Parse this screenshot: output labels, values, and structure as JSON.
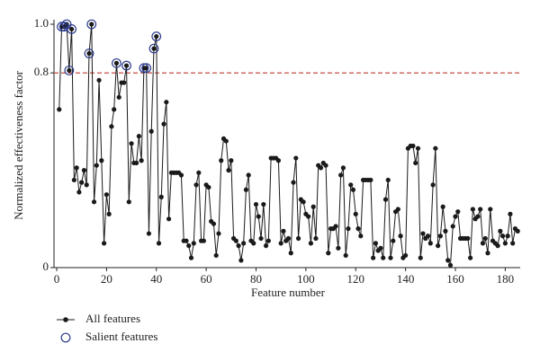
{
  "chart_data": {
    "type": "line",
    "xlabel": "Feature number",
    "ylabel": "Normalized effectiveness factor",
    "x": [
      1,
      2,
      3,
      4,
      5,
      6,
      7,
      8,
      9,
      10,
      11,
      12,
      13,
      14,
      15,
      16,
      17,
      18,
      19,
      20,
      21,
      22,
      23,
      24,
      25,
      26,
      27,
      28,
      29,
      30,
      31,
      32,
      33,
      34,
      35,
      36,
      37,
      38,
      39,
      40,
      41,
      42,
      43,
      44,
      45,
      46,
      47,
      48,
      49,
      50,
      51,
      52,
      53,
      54,
      55,
      56,
      57,
      58,
      59,
      60,
      61,
      62,
      63,
      64,
      65,
      66,
      67,
      68,
      69,
      70,
      71,
      72,
      73,
      74,
      75,
      76,
      77,
      78,
      79,
      80,
      81,
      82,
      83,
      84,
      85,
      86,
      87,
      88,
      89,
      90,
      91,
      92,
      93,
      94,
      95,
      96,
      97,
      98,
      99,
      100,
      101,
      102,
      103,
      104,
      105,
      106,
      107,
      108,
      109,
      110,
      111,
      112,
      113,
      114,
      115,
      116,
      117,
      118,
      119,
      120,
      121,
      122,
      123,
      124,
      125,
      126,
      127,
      128,
      129,
      130,
      131,
      132,
      133,
      134,
      135,
      136,
      137,
      138,
      139,
      140,
      141,
      142,
      143,
      144,
      145,
      146,
      147,
      148,
      149,
      150,
      151,
      152,
      153,
      154,
      155,
      156,
      157,
      158,
      159,
      160,
      161,
      162,
      163,
      164,
      165,
      166,
      167,
      168,
      169,
      170,
      171,
      172,
      173,
      174,
      175,
      176,
      177,
      178,
      179,
      180,
      181,
      182,
      183,
      184,
      185
    ],
    "series": [
      {
        "name": "All features",
        "color": "#1a1a1a",
        "values": [
          0.65,
          0.99,
          0.99,
          1.0,
          0.81,
          0.98,
          0.36,
          0.41,
          0.31,
          0.35,
          0.4,
          0.34,
          0.88,
          1.0,
          0.27,
          0.42,
          0.77,
          0.44,
          0.1,
          0.3,
          0.22,
          0.58,
          0.65,
          0.84,
          0.7,
          0.76,
          0.76,
          0.83,
          0.27,
          0.51,
          0.43,
          0.43,
          0.54,
          0.44,
          0.82,
          0.82,
          0.14,
          0.56,
          0.9,
          0.95,
          0.1,
          0.29,
          0.59,
          0.68,
          0.2,
          0.39,
          0.39,
          0.39,
          0.39,
          0.38,
          0.11,
          0.11,
          0.09,
          0.04,
          0.1,
          0.34,
          0.39,
          0.11,
          0.11,
          0.34,
          0.33,
          0.19,
          0.18,
          0.05,
          0.14,
          0.44,
          0.53,
          0.52,
          0.4,
          0.44,
          0.12,
          0.11,
          0.09,
          0.03,
          0.1,
          0.32,
          0.38,
          0.11,
          0.1,
          0.26,
          0.21,
          0.12,
          0.26,
          0.09,
          0.11,
          0.45,
          0.45,
          0.45,
          0.44,
          0.1,
          0.15,
          0.11,
          0.12,
          0.06,
          0.35,
          0.45,
          0.12,
          0.28,
          0.27,
          0.22,
          0.21,
          0.1,
          0.25,
          0.12,
          0.42,
          0.41,
          0.43,
          0.42,
          0.06,
          0.16,
          0.16,
          0.17,
          0.08,
          0.38,
          0.41,
          0.05,
          0.16,
          0.34,
          0.32,
          0.22,
          0.16,
          0.13,
          0.36,
          0.36,
          0.36,
          0.36,
          0.04,
          0.1,
          0.07,
          0.08,
          0.04,
          0.28,
          0.36,
          0.04,
          0.11,
          0.23,
          0.24,
          0.13,
          0.04,
          0.05,
          0.49,
          0.5,
          0.5,
          0.43,
          0.49,
          0.04,
          0.14,
          0.12,
          0.13,
          0.1,
          0.34,
          0.49,
          0.09,
          0.13,
          0.25,
          0.15,
          0.03,
          0.01,
          0.17,
          0.21,
          0.23,
          0.12,
          0.12,
          0.12,
          0.12,
          0.04,
          0.24,
          0.2,
          0.21,
          0.24,
          0.1,
          0.12,
          0.06,
          0.24,
          0.11,
          0.1,
          0.09,
          0.15,
          0.13,
          0.1,
          0.13,
          0.22,
          0.1,
          0.16,
          0.15
        ]
      },
      {
        "name": "Salient features",
        "color": "#2b3a8c",
        "marker": "open-circle",
        "x": [
          2,
          3,
          4,
          5,
          6,
          13,
          14,
          24,
          28,
          35,
          36,
          39,
          40
        ],
        "values": [
          0.99,
          0.99,
          1.0,
          0.81,
          0.98,
          0.88,
          1.0,
          0.84,
          0.83,
          0.82,
          0.82,
          0.9,
          0.95
        ]
      }
    ],
    "reference_line": {
      "value": 0.8,
      "color": "#c0392b",
      "style": "dashed"
    },
    "xlim": [
      0,
      186
    ],
    "xticks": [
      0,
      20,
      40,
      60,
      80,
      100,
      120,
      140,
      160,
      180
    ],
    "ylim": [
      0,
      1.0
    ],
    "yticks": [
      0,
      0.8,
      {
        "value": 1.0,
        "label": "1.0"
      }
    ],
    "legend": "bottom-left"
  }
}
